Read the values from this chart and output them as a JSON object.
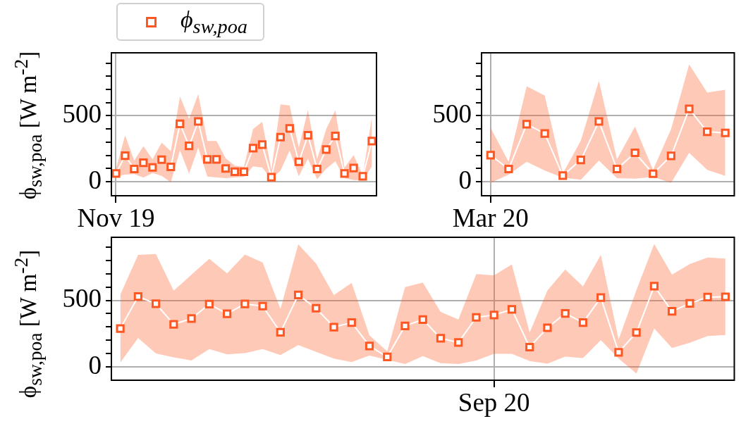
{
  "chart_data": [
    {
      "type": "line",
      "ylabel": "ϕ$_{sw,poa}$ [W m$^{-2}$]",
      "legend": "top left",
      "grid": true,
      "marker": "square",
      "line_style": "solid",
      "categories": [
        "Nov 19",
        null,
        null,
        null,
        null,
        null,
        null,
        null,
        null,
        null,
        null,
        null,
        null,
        null,
        null,
        null,
        null,
        null,
        null,
        null,
        null,
        null,
        null,
        null,
        null,
        null,
        null,
        null,
        null
      ],
      "ylim": [
        -107,
        978
      ],
      "yticks": [
        {
          "value": 0,
          "label": "0"
        },
        {
          "value": 100,
          "label": null
        },
        {
          "value": 200,
          "label": null
        },
        {
          "value": 300,
          "label": null
        },
        {
          "value": 400,
          "label": null
        },
        {
          "value": 500,
          "label": "500"
        },
        {
          "value": 600,
          "label": null
        },
        {
          "value": 700,
          "label": null
        },
        {
          "value": 800,
          "label": null
        },
        {
          "value": 900,
          "label": null
        }
      ],
      "series": [
        {
          "name": "ϕ$_{sw,poa}$",
          "color": "#ff5722",
          "values": [
            62,
            197,
            96,
            144,
            108,
            167,
            112,
            439,
            272,
            457,
            169,
            169,
            100,
            75,
            75,
            254,
            281,
            34,
            338,
            404,
            151,
            352,
            96,
            244,
            347,
            62,
            103,
            41,
            308
          ],
          "upper": [
            98,
            351,
            160,
            270,
            169,
            297,
            231,
            646,
            477,
            664,
            308,
            308,
            178,
            121,
            112,
            400,
            454,
            89,
            587,
            578,
            258,
            543,
            169,
            400,
            543,
            107,
            201,
            48,
            493
          ],
          "lower": [
            41,
            53,
            57,
            30,
            66,
            44,
            -5,
            237,
            62,
            258,
            39,
            32,
            27,
            32,
            36,
            116,
            107,
            20,
            84,
            237,
            41,
            173,
            18,
            98,
            155,
            27,
            12,
            9,
            116
          ]
        }
      ]
    },
    {
      "type": "line",
      "grid": true,
      "marker": "square",
      "line_style": "solid",
      "categories": [
        "Mar 20",
        null,
        null,
        null,
        null,
        null,
        null,
        null,
        null,
        null,
        null,
        null,
        null,
        null
      ],
      "ylim": [
        -107,
        978
      ],
      "yticks": [
        {
          "value": 0,
          "label": "0"
        },
        {
          "value": 100,
          "label": null
        },
        {
          "value": 200,
          "label": null
        },
        {
          "value": 300,
          "label": null
        },
        {
          "value": 400,
          "label": null
        },
        {
          "value": 500,
          "label": "500"
        },
        {
          "value": 600,
          "label": null
        },
        {
          "value": 700,
          "label": null
        },
        {
          "value": 800,
          "label": null
        },
        {
          "value": 900,
          "label": null
        }
      ],
      "series": [
        {
          "color": "#ff5722",
          "values": [
            201,
            96,
            436,
            365,
            46,
            165,
            457,
            96,
            219,
            60,
            196,
            552,
            379,
            370
          ],
          "upper": [
            409,
            151,
            724,
            653,
            62,
            311,
            765,
            169,
            418,
            89,
            400,
            890,
            676,
            698
          ],
          "lower": [
            -9,
            53,
            151,
            84,
            30,
            14,
            160,
            27,
            23,
            36,
            -9,
            219,
            89,
            44
          ]
        }
      ]
    },
    {
      "type": "line",
      "ylabel": "ϕ$_{sw,poa}$ [W m$^{-2}$]",
      "grid": true,
      "marker": "square",
      "line_style": "solid",
      "categories": [
        null,
        null,
        null,
        null,
        null,
        null,
        null,
        null,
        null,
        null,
        null,
        null,
        null,
        null,
        null,
        null,
        null,
        null,
        null,
        null,
        null,
        "Sep 20",
        null,
        null,
        null,
        null,
        null,
        null,
        null,
        null,
        null,
        null,
        null,
        null,
        null
      ],
      "ylim": [
        -101,
        975
      ],
      "yticks": [
        {
          "value": 0,
          "label": "0"
        },
        {
          "value": 100,
          "label": null
        },
        {
          "value": 200,
          "label": null
        },
        {
          "value": 300,
          "label": null
        },
        {
          "value": 400,
          "label": null
        },
        {
          "value": 500,
          "label": "500"
        },
        {
          "value": 600,
          "label": null
        },
        {
          "value": 700,
          "label": null
        },
        {
          "value": 800,
          "label": null
        },
        {
          "value": 900,
          "label": null
        }
      ],
      "series": [
        {
          "color": "#ff5722",
          "values": [
            288,
            529,
            475,
            320,
            363,
            472,
            399,
            473,
            457,
            260,
            541,
            441,
            299,
            333,
            157,
            75,
            308,
            356,
            215,
            183,
            372,
            390,
            432,
            148,
            294,
            402,
            333,
            521,
            109,
            258,
            607,
            418,
            477,
            525,
            527
          ],
          "upper": [
            543,
            842,
            849,
            573,
            694,
            813,
            703,
            845,
            786,
            436,
            922,
            778,
            541,
            632,
            237,
            116,
            600,
            635,
            413,
            356,
            698,
            689,
            771,
            258,
            575,
            733,
            605,
            842,
            205,
            578,
            925,
            694,
            774,
            822,
            815
          ],
          "lower": [
            32,
            217,
            101,
            71,
            48,
            133,
            94,
            103,
            133,
            89,
            164,
            112,
            62,
            36,
            85,
            53,
            21,
            80,
            27,
            21,
            48,
            98,
            98,
            44,
            23,
            77,
            66,
            201,
            62,
            -50,
            288,
            142,
            181,
            231,
            240
          ]
        }
      ]
    }
  ]
}
